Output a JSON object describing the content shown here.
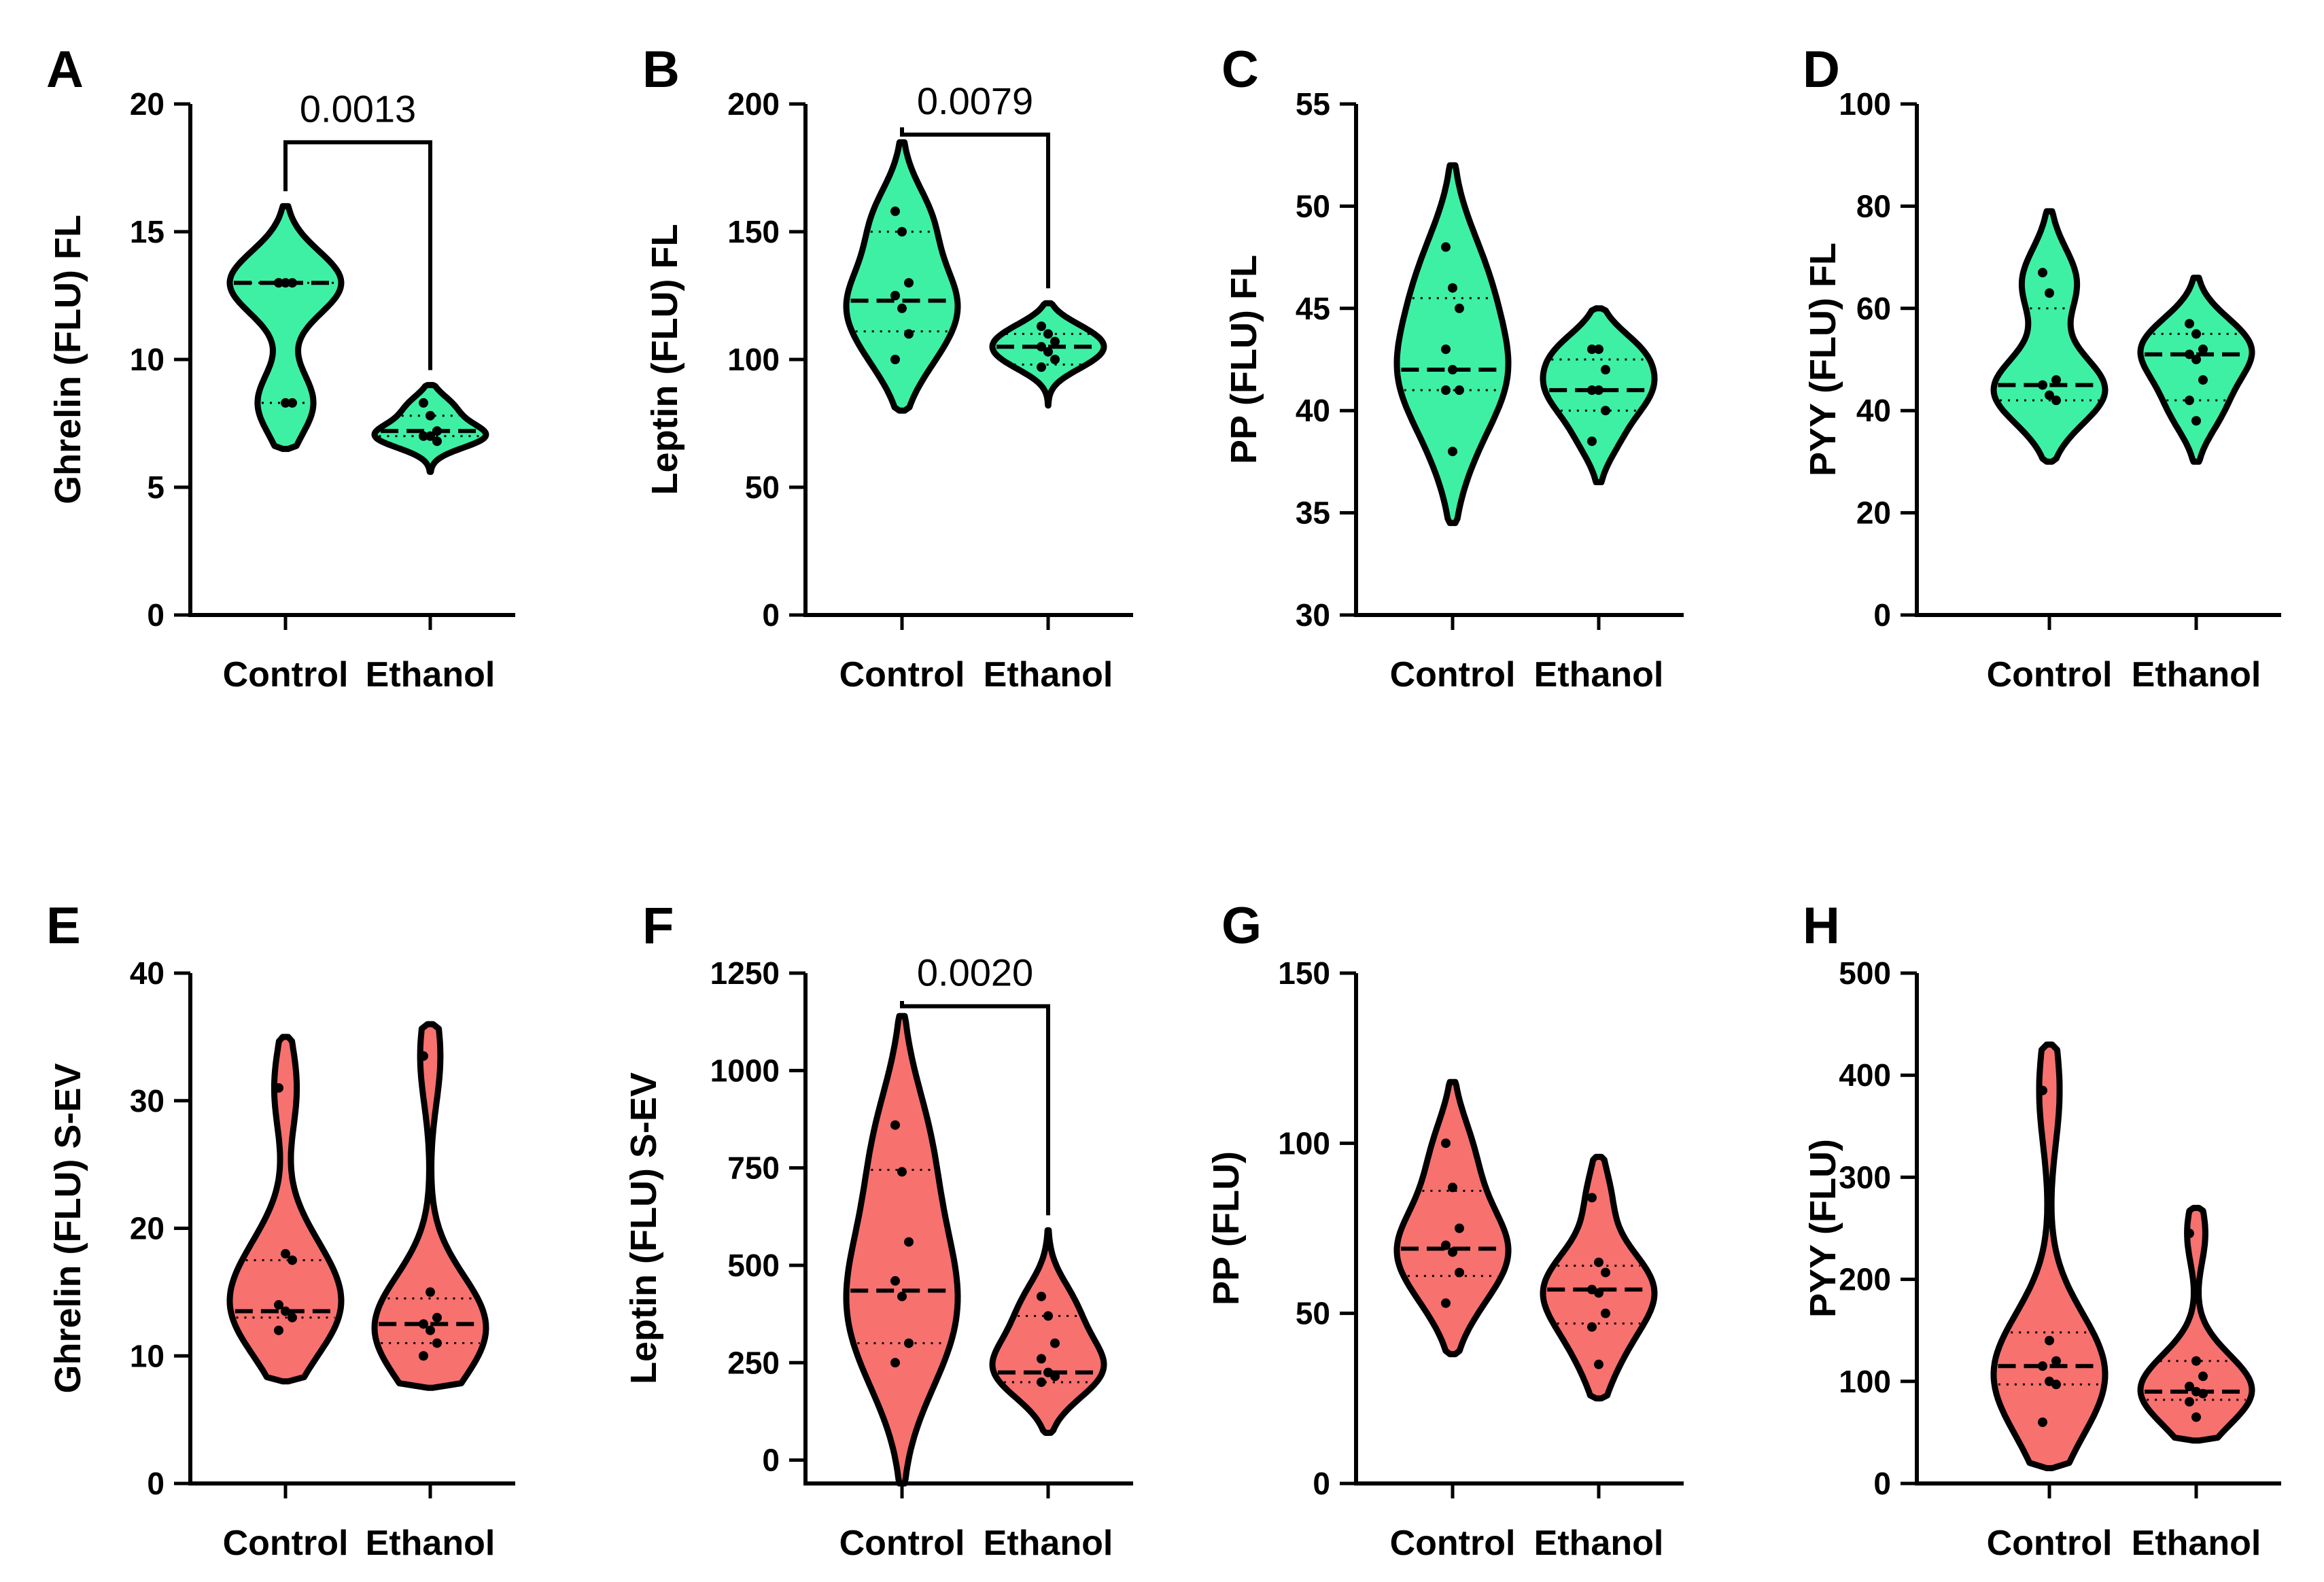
{
  "chart_data": [
    {
      "panel": "A",
      "type": "violin",
      "ylabel": "Ghrelin (FLU) FL",
      "ylim": [
        0,
        20
      ],
      "yticks": [
        "0",
        "5",
        "10",
        "15",
        "20"
      ],
      "categories": [
        "Control",
        "Ethanol"
      ],
      "fill": "#3ef0a4",
      "series": [
        {
          "points": [
            13,
            13,
            13,
            13,
            8.3,
            8.3
          ],
          "median": 13,
          "q1": 8.3,
          "q3": 13,
          "min": 6.5,
          "max": 16
        },
        {
          "points": [
            8.3,
            7.8,
            7.2,
            7.0,
            7.0,
            6.8
          ],
          "median": 7.2,
          "q1": 7.0,
          "q3": 7.8,
          "min": 5.6,
          "max": 9.0
        }
      ],
      "significance": {
        "label": "0.0013",
        "y": 18.5
      }
    },
    {
      "panel": "B",
      "type": "violin",
      "ylabel": "Leptin (FLU) FL",
      "ylim": [
        0,
        200
      ],
      "yticks": [
        "0",
        "50",
        "100",
        "150",
        "200"
      ],
      "categories": [
        "Control",
        "Ethanol"
      ],
      "fill": "#3ef0a4",
      "series": [
        {
          "points": [
            158,
            150,
            130,
            125,
            120,
            110,
            100
          ],
          "median": 123,
          "q1": 111,
          "q3": 150,
          "min": 80,
          "max": 185
        },
        {
          "points": [
            113,
            110,
            107,
            105,
            103,
            100,
            97
          ],
          "median": 105,
          "q1": 98,
          "q3": 110,
          "min": 82,
          "max": 122
        }
      ],
      "significance": {
        "label": "0.0079",
        "y": 188
      }
    },
    {
      "panel": "C",
      "type": "violin",
      "ylabel": "PP (FLU) FL",
      "ylim": [
        30,
        55
      ],
      "yticks": [
        "30",
        "35",
        "40",
        "45",
        "50",
        "55"
      ],
      "categories": [
        "Control",
        "Ethanol"
      ],
      "fill": "#3ef0a4",
      "series": [
        {
          "points": [
            48,
            46,
            45,
            43,
            42,
            41,
            41,
            38
          ],
          "median": 42,
          "q1": 41,
          "q3": 45.5,
          "min": 34.5,
          "max": 52
        },
        {
          "points": [
            43,
            43,
            42,
            41,
            41,
            40,
            38.5
          ],
          "median": 41,
          "q1": 40,
          "q3": 42.5,
          "min": 36.5,
          "max": 45
        }
      ],
      "significance": null
    },
    {
      "panel": "D",
      "type": "violin",
      "ylabel": "PYY (FLU) FL",
      "ylim": [
        0,
        100
      ],
      "yticks": [
        "0",
        "20",
        "40",
        "60",
        "80",
        "100"
      ],
      "categories": [
        "Control",
        "Ethanol"
      ],
      "fill": "#3ef0a4",
      "series": [
        {
          "points": [
            67,
            63,
            46,
            45,
            43,
            42
          ],
          "median": 45,
          "q1": 42,
          "q3": 60,
          "min": 30,
          "max": 79
        },
        {
          "points": [
            57,
            55,
            52,
            51,
            50,
            46,
            42,
            38
          ],
          "median": 51,
          "q1": 42,
          "q3": 55,
          "min": 30,
          "max": 66
        }
      ],
      "significance": null
    },
    {
      "panel": "E",
      "type": "violin",
      "ylabel": "Ghrelin (FLU) S-EV",
      "ylim": [
        0,
        40
      ],
      "yticks": [
        "0",
        "10",
        "20",
        "30",
        "40"
      ],
      "categories": [
        "Control",
        "Ethanol"
      ],
      "fill": "#f7716f",
      "series": [
        {
          "points": [
            31,
            18,
            17.5,
            14,
            13.5,
            13,
            12
          ],
          "median": 13.5,
          "q1": 13,
          "q3": 17.5,
          "min": 8,
          "max": 35
        },
        {
          "points": [
            33.5,
            15,
            13,
            12.5,
            12,
            11,
            10
          ],
          "median": 12.5,
          "q1": 11,
          "q3": 14.5,
          "min": 7.5,
          "max": 36
        }
      ],
      "significance": null
    },
    {
      "panel": "F",
      "type": "violin",
      "ylabel": "Leptin (FLU) S-EV",
      "ylim": [
        -60,
        1250
      ],
      "yticks": [
        "0",
        "250",
        "500",
        "750",
        "1000",
        "1250"
      ],
      "ytick_values": [
        0,
        250,
        500,
        750,
        1000,
        1250
      ],
      "categories": [
        "Control",
        "Ethanol"
      ],
      "fill": "#f7716f",
      "series": [
        {
          "points": [
            860,
            740,
            560,
            460,
            420,
            300,
            250
          ],
          "median": 435,
          "q1": 300,
          "q3": 745,
          "min": -60,
          "max": 1140
        },
        {
          "points": [
            420,
            370,
            300,
            260,
            225,
            215,
            200
          ],
          "median": 225,
          "q1": 200,
          "q3": 370,
          "min": 70,
          "max": 590
        }
      ],
      "significance": {
        "label": "0.0020",
        "y": 1165
      }
    },
    {
      "panel": "G",
      "type": "violin",
      "ylabel": "PP (FLU)",
      "ylim": [
        0,
        150
      ],
      "yticks": [
        "0",
        "50",
        "100",
        "150"
      ],
      "categories": [
        "Control",
        "Ethanol"
      ],
      "fill": "#f7716f",
      "series": [
        {
          "points": [
            100,
            87,
            75,
            70,
            68,
            62,
            53
          ],
          "median": 69,
          "q1": 61,
          "q3": 86,
          "min": 38,
          "max": 118
        },
        {
          "points": [
            84,
            65,
            62,
            57,
            56,
            50,
            46,
            35
          ],
          "median": 57,
          "q1": 47,
          "q3": 64,
          "min": 25,
          "max": 96
        }
      ],
      "significance": null
    },
    {
      "panel": "H",
      "type": "violin",
      "ylabel": "PYY (FLU)",
      "ylim": [
        0,
        500
      ],
      "yticks": [
        "0",
        "100",
        "200",
        "300",
        "400",
        "500"
      ],
      "categories": [
        "Control",
        "Ethanol"
      ],
      "fill": "#f7716f",
      "series": [
        {
          "points": [
            385,
            140,
            120,
            115,
            100,
            97,
            60
          ],
          "median": 115,
          "q1": 97,
          "q3": 148,
          "min": 15,
          "max": 430
        },
        {
          "points": [
            245,
            120,
            105,
            95,
            90,
            88,
            80,
            65
          ],
          "median": 90,
          "q1": 82,
          "q3": 120,
          "min": 42,
          "max": 270
        }
      ],
      "significance": null
    }
  ]
}
